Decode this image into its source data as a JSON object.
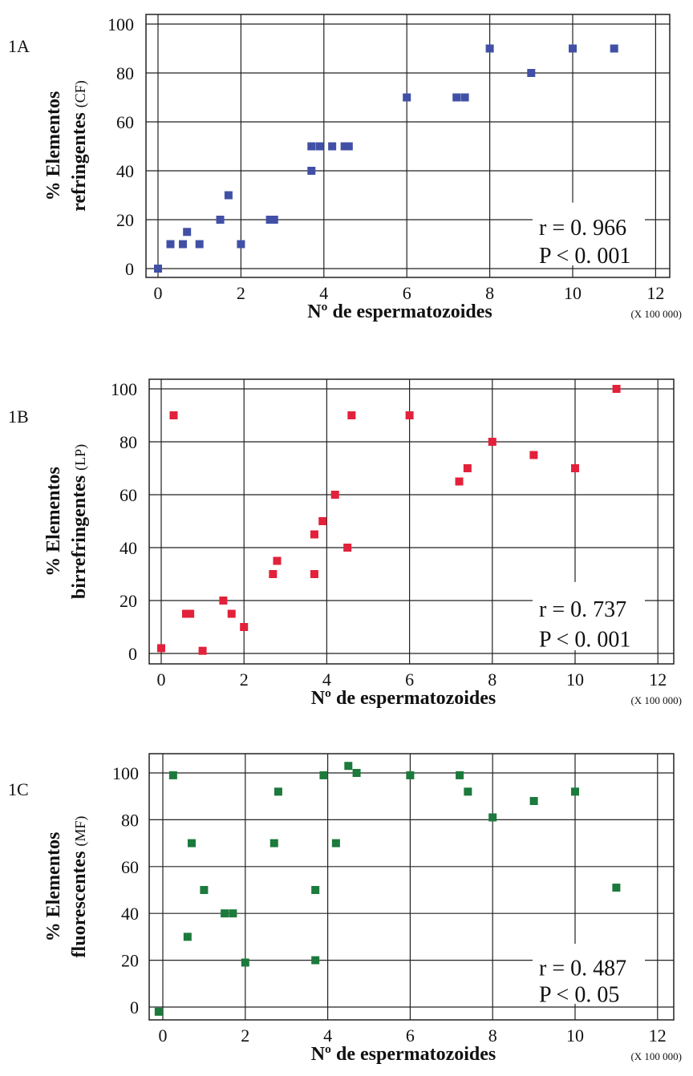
{
  "chart_data": [
    {
      "type": "scatter",
      "panel": "1A",
      "ylabel_line1": "% Elementos",
      "ylabel_line2": "refringentes",
      "ylabel_suffix": "(CF)",
      "xlabel": "Nº de espermatozoides",
      "x_unit": "(X 100 000)",
      "xlim": [
        0,
        12
      ],
      "ylim": [
        0,
        100
      ],
      "xticks": [
        0,
        2,
        4,
        6,
        8,
        10,
        12
      ],
      "yticks": [
        0,
        20,
        40,
        60,
        80,
        100
      ],
      "grid": true,
      "color": "#4150a6",
      "stat_r": "r = 0. 966",
      "stat_p": "P < 0. 001",
      "points": [
        [
          0,
          0
        ],
        [
          0.3,
          10
        ],
        [
          0.6,
          10
        ],
        [
          0.7,
          15
        ],
        [
          1.0,
          10
        ],
        [
          1.5,
          20
        ],
        [
          1.7,
          30
        ],
        [
          2.0,
          10
        ],
        [
          2.7,
          20
        ],
        [
          2.8,
          20
        ],
        [
          3.7,
          40
        ],
        [
          3.7,
          50
        ],
        [
          3.9,
          50
        ],
        [
          4.2,
          50
        ],
        [
          4.5,
          50
        ],
        [
          4.6,
          50
        ],
        [
          6,
          70
        ],
        [
          7.2,
          70
        ],
        [
          7.4,
          70
        ],
        [
          8,
          90
        ],
        [
          9,
          80
        ],
        [
          10,
          90
        ],
        [
          11,
          90
        ]
      ]
    },
    {
      "type": "scatter",
      "panel": "1B",
      "ylabel_line1": "% Elementos",
      "ylabel_line2": "birrefringentes",
      "ylabel_suffix": "(LP)",
      "xlabel": "Nº de espermatozoides",
      "x_unit": "(X 100 000)",
      "xlim": [
        0,
        12
      ],
      "ylim": [
        0,
        100
      ],
      "xticks": [
        0,
        2,
        4,
        6,
        8,
        10,
        12
      ],
      "yticks": [
        0,
        20,
        40,
        60,
        80,
        100
      ],
      "grid": true,
      "color": "#e3213a",
      "stat_r": "r = 0. 737",
      "stat_p": "P < 0. 001",
      "points": [
        [
          0,
          2
        ],
        [
          0.3,
          90
        ],
        [
          0.6,
          15
        ],
        [
          0.7,
          15
        ],
        [
          1.0,
          1
        ],
        [
          1.5,
          20
        ],
        [
          1.7,
          15
        ],
        [
          2.0,
          10
        ],
        [
          2.7,
          30
        ],
        [
          2.8,
          35
        ],
        [
          3.7,
          30
        ],
        [
          3.7,
          45
        ],
        [
          3.9,
          50
        ],
        [
          4.2,
          60
        ],
        [
          4.5,
          40
        ],
        [
          4.6,
          90
        ],
        [
          6,
          90
        ],
        [
          7.2,
          65
        ],
        [
          7.4,
          70
        ],
        [
          8,
          80
        ],
        [
          9,
          75
        ],
        [
          10,
          70
        ],
        [
          11,
          100
        ]
      ]
    },
    {
      "type": "scatter",
      "panel": "1C",
      "ylabel_line1": "% Elementos",
      "ylabel_line2": "fluorescentes",
      "ylabel_suffix": "(MF)",
      "xlabel": "Nº de espermatozoides",
      "x_unit": "(X 100 000)",
      "xlim": [
        0,
        12
      ],
      "ylim": [
        0,
        100
      ],
      "xticks": [
        0,
        2,
        4,
        6,
        8,
        10,
        12
      ],
      "yticks": [
        0,
        20,
        40,
        60,
        80,
        100
      ],
      "grid": true,
      "color": "#1b7a3c",
      "stat_r": "r = 0. 487",
      "stat_p": "P < 0. 05",
      "points": [
        [
          -0.1,
          -2
        ],
        [
          0.25,
          99
        ],
        [
          0.6,
          30
        ],
        [
          0.7,
          70
        ],
        [
          1.0,
          50
        ],
        [
          1.5,
          40
        ],
        [
          1.7,
          40
        ],
        [
          2.0,
          19
        ],
        [
          2.7,
          70
        ],
        [
          2.8,
          92
        ],
        [
          3.7,
          50
        ],
        [
          3.7,
          20
        ],
        [
          3.9,
          99
        ],
        [
          4.2,
          70
        ],
        [
          4.5,
          103
        ],
        [
          4.7,
          100
        ],
        [
          6,
          99
        ],
        [
          7.2,
          99
        ],
        [
          7.4,
          92
        ],
        [
          8,
          81
        ],
        [
          9,
          88
        ],
        [
          10,
          92
        ],
        [
          11,
          51
        ]
      ]
    }
  ]
}
